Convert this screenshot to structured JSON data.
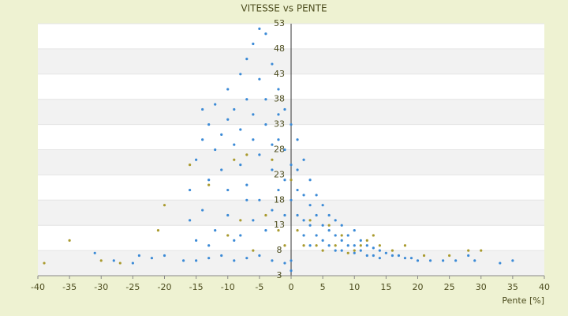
{
  "chart_data": {
    "type": "scatter",
    "title": "VITESSE vs PENTE",
    "x_label": "Pente [%]",
    "xlim": [
      -40,
      40
    ],
    "xticks": [
      -40,
      -35,
      -30,
      -25,
      -20,
      -15,
      -10,
      -5,
      0,
      5,
      10,
      15,
      20,
      25,
      30,
      35,
      40
    ],
    "ylim": [
      3,
      53
    ],
    "yticks": [
      3,
      8,
      13,
      18,
      23,
      28,
      33,
      38,
      43,
      48,
      53
    ],
    "grid": true,
    "series": [
      {
        "color": "#3b8ad6",
        "x": [
          -24,
          -22,
          -20,
          -17,
          -15,
          -13,
          -11,
          -9,
          -7,
          -5,
          -3,
          -1,
          0,
          0,
          -15,
          -14,
          -14,
          -13,
          -13,
          -12,
          -12,
          -11,
          -11,
          -10,
          -10,
          -10,
          -9,
          -9,
          -8,
          -8,
          -8,
          -7,
          -7,
          -7,
          -6,
          -6,
          -6,
          -5,
          -5,
          -5,
          -5,
          -4,
          -4,
          -4,
          -3,
          -3,
          -3,
          -2,
          -2,
          -2,
          -2,
          -1,
          -1,
          -1,
          -1,
          0,
          0,
          0,
          -16,
          -14,
          -12,
          -10,
          -8,
          -6,
          -4,
          -3,
          -16,
          -15,
          -13,
          -9,
          -7,
          1,
          1,
          1,
          1,
          2,
          2,
          2,
          2,
          3,
          3,
          3,
          3,
          4,
          4,
          4,
          5,
          5,
          5,
          6,
          6,
          6,
          7,
          7,
          7,
          8,
          8,
          8,
          9,
          9,
          10,
          10,
          10,
          11,
          11,
          12,
          12,
          13,
          13,
          14,
          14,
          15,
          16,
          17,
          18,
          19,
          20,
          22,
          24,
          26,
          28,
          29,
          33,
          35,
          -31,
          -28,
          -25
        ],
        "values": [
          7,
          6.5,
          7,
          6,
          6,
          6.5,
          7,
          6,
          6.5,
          7,
          6,
          5.5,
          4,
          6,
          26,
          30,
          36,
          33,
          22,
          28,
          37,
          31,
          24,
          40,
          34,
          20,
          29,
          36,
          43,
          25,
          32,
          38,
          46,
          21,
          49,
          30,
          35,
          52,
          42,
          27,
          18,
          51,
          38,
          33,
          45,
          29,
          24,
          40,
          35,
          30,
          20,
          36,
          28,
          22,
          15,
          33,
          25,
          18,
          14,
          16,
          12,
          15,
          11,
          14,
          12,
          16,
          20,
          10,
          9,
          10,
          18,
          30,
          24,
          20,
          15,
          26,
          19,
          14,
          11,
          22,
          17,
          13,
          9,
          19,
          15,
          11,
          17,
          13,
          10,
          15,
          12,
          9,
          14,
          11,
          8,
          13,
          10,
          8,
          11,
          9,
          12,
          9,
          7.5,
          10,
          8,
          9,
          7,
          8.5,
          7,
          8,
          6.5,
          7.5,
          7,
          7,
          6.5,
          6.5,
          6,
          6,
          6,
          6,
          7,
          6,
          5.5,
          6,
          7.5,
          6,
          5.5
        ]
      },
      {
        "color": "#a99a2e",
        "x": [
          -35,
          -39,
          -30,
          -27,
          -21,
          -20,
          -16,
          -13,
          -10,
          -8,
          -6,
          -4,
          -3,
          -2,
          -1,
          0,
          1,
          2,
          3,
          4,
          5,
          6,
          7,
          8,
          9,
          10,
          11,
          12,
          13,
          14,
          16,
          18,
          21,
          25,
          28,
          30,
          -7,
          -9
        ],
        "values": [
          10,
          5.5,
          6,
          5.5,
          12,
          17,
          25,
          21,
          11,
          14,
          8,
          15,
          26,
          12,
          9,
          22,
          12,
          9,
          14,
          9,
          8,
          13,
          9,
          11,
          7.5,
          8,
          9,
          10,
          11,
          9,
          8,
          9,
          7,
          7,
          8,
          8,
          27,
          26
        ]
      }
    ]
  }
}
